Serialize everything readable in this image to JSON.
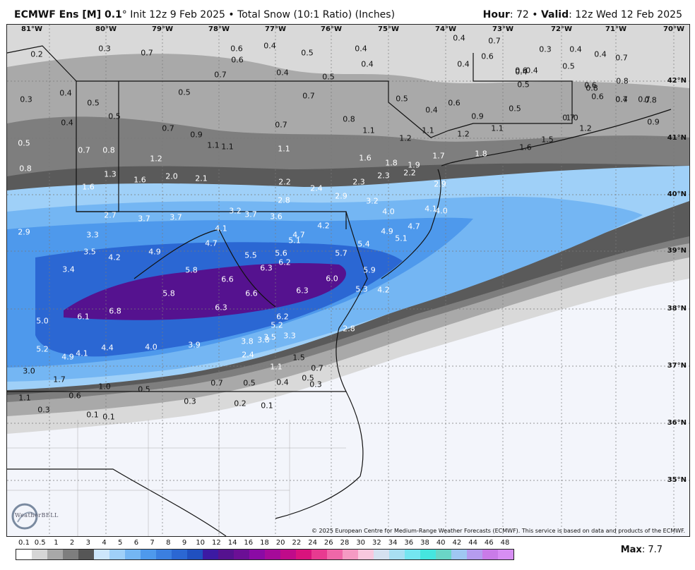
{
  "header": {
    "model_name": "ECMWF Ens [M] 0.1",
    "model_deg": "°",
    "init_text": " Init 12z 9 Feb 2025 • Total Snow (10:1 Ratio) (Inches)",
    "hour_label": "Hour",
    "hour_value": ": 72 • ",
    "valid_label": "Valid",
    "valid_value": ": 12z Wed 12 Feb 2025"
  },
  "map": {
    "lon_labels": [
      "81°W",
      "80°W",
      "79°W",
      "78°W",
      "77°W",
      "76°W",
      "75°W",
      "74°W",
      "73°W",
      "72°W",
      "71°W",
      "70°W"
    ],
    "lat_labels": [
      "42°N",
      "41°N",
      "40°N",
      "39°N",
      "38°N",
      "37°N",
      "36°N",
      "35°N"
    ],
    "copyright": "© 2025 European Centre for Medium-Range Weather Forecasts (ECMWF). This service is based on data and products of the ECMWF.",
    "logo_text": "WeatherBELL",
    "values": [
      "0.2",
      "0.3",
      "0.7",
      "0.6",
      "0.6",
      "0.4",
      "0.5",
      "0.4",
      "0.4",
      "0.7",
      "0.4",
      "0.5",
      "0.4",
      "0.7",
      "0.6",
      "0.4",
      "0.7",
      "0.3",
      "0.4",
      "0.4",
      "0.4",
      "0.4",
      "0.5",
      "0.3",
      "0.4",
      "0.5",
      "0.5",
      "0.7",
      "0.5",
      "0.5",
      "0.6",
      "0.4",
      "0.6",
      "0.6",
      "0.4",
      "0.7",
      "0.8",
      "0.9",
      "0.5",
      "0.7",
      "0.8",
      "1.0",
      "0.6",
      "0.7",
      "0.8",
      "0.9",
      "1.2",
      "0.4",
      "0.5",
      "0.7",
      "0.9",
      "1.1",
      "1.1",
      "0.7",
      "0.8",
      "1.1",
      "1.2",
      "1.1",
      "1.2",
      "1.1",
      "1.5",
      "1.6",
      "1.8",
      "1.7",
      "0.5",
      "0.7",
      "0.8",
      "1.2",
      "1.1",
      "1.6",
      "1.8",
      "1.9",
      "2.3",
      "2.2",
      "0.8",
      "1.3",
      "1.6",
      "2.0",
      "2.1",
      "2.2",
      "2.4",
      "2.3",
      "2.9",
      "1.6",
      "2.8",
      "2.9",
      "3.2",
      "4.1",
      "4.0",
      "2.7",
      "3.7",
      "3.7",
      "3.2",
      "3.7",
      "3.6",
      "4.2",
      "4.0",
      "4.7",
      "2.9",
      "3.3",
      "4.1",
      "4.7",
      "4.7",
      "5.1",
      "4.9",
      "5.1",
      "3.5",
      "4.2",
      "4.9",
      "5.5",
      "5.6",
      "5.7",
      "5.4",
      "3.4",
      "5.8",
      "6.3",
      "6.2",
      "5.9",
      "6.0",
      "6.6",
      "6.6",
      "6.3",
      "5.3",
      "4.2",
      "5.8",
      "6.1",
      "6.8",
      "6.3",
      "6.2",
      "5.0",
      "5.2",
      "4.9",
      "3.8",
      "3.5",
      "3.3",
      "2.8",
      "5.2",
      "4.1",
      "4.4",
      "4.0",
      "3.9",
      "2.4",
      "3.8",
      "1.1",
      "1.5",
      "3.0",
      "1.7",
      "1.0",
      "0.5",
      "0.7",
      "0.5",
      "0.4",
      "0.5",
      "0.7",
      "0.3",
      "1.1",
      "0.6",
      "0.3",
      "0.2",
      "0.1",
      "0.3",
      "0.1",
      "0.1"
    ]
  },
  "legend": {
    "labels": [
      "0.1",
      "0.5",
      "1",
      "2",
      "3",
      "4",
      "5",
      "6",
      "7",
      "8",
      "9",
      "10",
      "12",
      "14",
      "16",
      "18",
      "20",
      "22",
      "24",
      "26",
      "28",
      "30",
      "32",
      "34",
      "36",
      "38",
      "40",
      "42",
      "44",
      "46",
      "48"
    ],
    "colors": [
      "#ffffff",
      "#d6d6d6",
      "#a8a8a8",
      "#7e7e7e",
      "#565656",
      "#cde6fb",
      "#9fd0f8",
      "#74b6f3",
      "#4e99ec",
      "#3b7fe0",
      "#2b67d3",
      "#2050c0",
      "#3c1aa3",
      "#55128f",
      "#6b0f95",
      "#8b0aa5",
      "#a60a9a",
      "#c00b8a",
      "#d9137d",
      "#e83a90",
      "#ef67a8",
      "#f59ac3",
      "#f8c8de",
      "#d5e1f0",
      "#a8dff2",
      "#74e5f0",
      "#45e6df",
      "#6ad6c6",
      "#9fc7f2",
      "#b59cef",
      "#c97be8",
      "#d78ef3"
    ],
    "max_label": "Max",
    "max_value": ": 7.7"
  }
}
